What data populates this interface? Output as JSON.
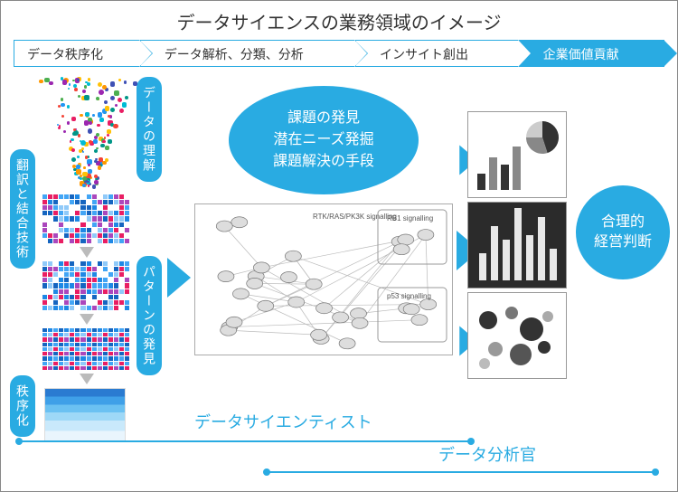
{
  "title": "データサイエンスの業務領域のイメージ",
  "colors": {
    "accent": "#29abe2",
    "text": "#333333",
    "border": "#888888",
    "net_border": "#aaaaaa",
    "grey": "#bbbbbb",
    "dark_panel": "#2b2b2b"
  },
  "process_steps": [
    {
      "label": "データ秩序化",
      "filled": false
    },
    {
      "label": "データ解析、分類、分析",
      "filled": false
    },
    {
      "label": "インサイト創出",
      "filled": false
    },
    {
      "label": "企業価値貢献",
      "filled": true
    }
  ],
  "vertical_labels": {
    "translate": "翻訳と結合技術",
    "understand": "データの理解",
    "pattern": "パターンの発見",
    "order": "秩序化"
  },
  "ellipse_lines": [
    "課題の発見",
    "潜在ニーズ発掘",
    "課題解決の手段"
  ],
  "network_regions": [
    "RTK/RAS/PK3K signalling",
    "RB1 signalling",
    "p53 signalling"
  ],
  "right_circle_lines": [
    "合理的",
    "経営判断"
  ],
  "bottom_spans": {
    "scientist": "データサイエンティスト",
    "analyst": "データ分析官"
  },
  "thumb_pie": {
    "type": "pie",
    "slices": [
      0.45,
      0.3,
      0.25
    ],
    "colors": [
      "#333333",
      "#888888",
      "#cccccc"
    ]
  },
  "thumb_bars_dark": {
    "type": "bar",
    "values": [
      30,
      60,
      45,
      80,
      50,
      70,
      35
    ],
    "color": "#e8e8e8",
    "bg": "#2b2b2b"
  },
  "thumb_bubbles": {
    "type": "scatter",
    "points": [
      {
        "x": 22,
        "y": 30,
        "r": 10,
        "c": "#333"
      },
      {
        "x": 48,
        "y": 22,
        "r": 7,
        "c": "#777"
      },
      {
        "x": 70,
        "y": 40,
        "r": 13,
        "c": "#333"
      },
      {
        "x": 88,
        "y": 26,
        "r": 6,
        "c": "#aaa"
      },
      {
        "x": 30,
        "y": 62,
        "r": 8,
        "c": "#999"
      },
      {
        "x": 58,
        "y": 68,
        "r": 12,
        "c": "#555"
      },
      {
        "x": 84,
        "y": 60,
        "r": 7,
        "c": "#333"
      },
      {
        "x": 18,
        "y": 78,
        "r": 6,
        "c": "#bbb"
      }
    ]
  },
  "funnel_colors": [
    "#e91e63",
    "#2196f3",
    "#ff9800",
    "#4caf50",
    "#9c27b0",
    "#00bcd4",
    "#ffc107",
    "#f44336",
    "#3f51b5",
    "#009688"
  ],
  "heat_palette": [
    "#1565c0",
    "#1e88e5",
    "#42a5f5",
    "#90caf9",
    "#e91e63",
    "#ab47bc",
    "#ffffff",
    "#ffffff"
  ]
}
